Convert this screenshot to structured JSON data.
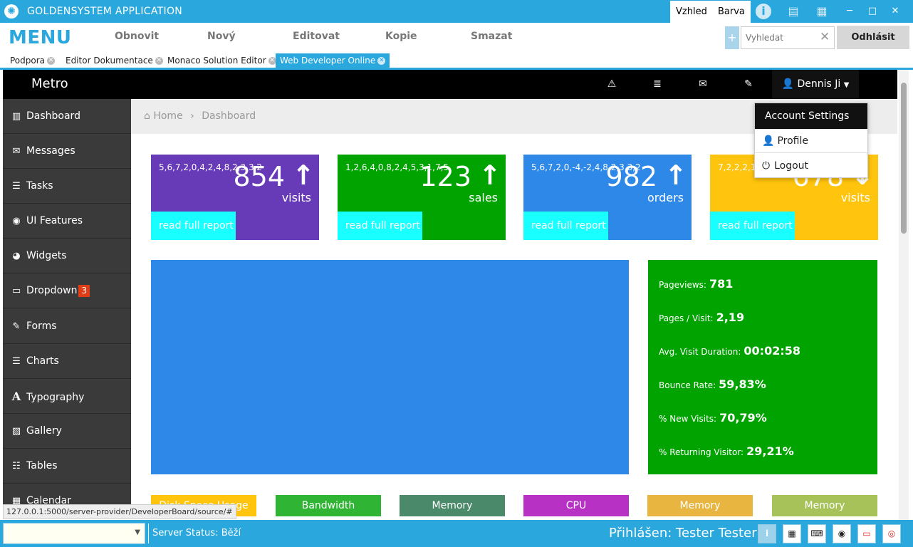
{
  "window": {
    "title": "GOLDENSYSTEM APPLICATION",
    "tabs": [
      "Vzhled",
      "Barva"
    ],
    "icons": [
      "info-icon",
      "book-icon",
      "layout-icon"
    ],
    "controls": [
      "minimize",
      "maximize",
      "close"
    ]
  },
  "menu": {
    "title": "MENU",
    "items": [
      "Obnovit",
      "Nový",
      "Editovat",
      "Kopie",
      "Smazat"
    ],
    "search_placeholder": "Vyhledat",
    "logout": "Odhlásit"
  },
  "doc_tabs": [
    {
      "label": "Podpora",
      "active": false
    },
    {
      "label": "Editor Dokumentace",
      "active": false
    },
    {
      "label": "Monaco Solution Editor",
      "active": false
    },
    {
      "label": "Web Developer Online",
      "active": true
    }
  ],
  "app": {
    "brand": "Metro",
    "user": "Dennis Ji",
    "nav_icons": [
      "warning-icon",
      "list-icon",
      "mail-icon",
      "wrench-icon"
    ],
    "dropdown": {
      "header": "Account Settings",
      "items": [
        "Profile",
        "Logout"
      ]
    },
    "sidebar": [
      {
        "label": "Dashboard",
        "icon": "chart-icon"
      },
      {
        "label": "Messages",
        "icon": "envelope-icon"
      },
      {
        "label": "Tasks",
        "icon": "tasks-icon"
      },
      {
        "label": "UI Features",
        "icon": "eye-icon"
      },
      {
        "label": "Widgets",
        "icon": "dashboard-icon"
      },
      {
        "label": "Dropdown",
        "icon": "folder-icon",
        "badge": "3"
      },
      {
        "label": "Forms",
        "icon": "edit-icon"
      },
      {
        "label": "Charts",
        "icon": "list-icon"
      },
      {
        "label": "Typography",
        "icon": "font-icon"
      },
      {
        "label": "Gallery",
        "icon": "picture-icon"
      },
      {
        "label": "Tables",
        "icon": "table-icon"
      },
      {
        "label": "Calendar",
        "icon": "calendar-icon"
      }
    ],
    "breadcrumb": [
      "Home",
      "Dashboard"
    ],
    "tiles": [
      {
        "spark": "5,6,7,2,0,4,2,4,8,2,3,3,2",
        "value": "854",
        "label": "visits",
        "report": "read full report",
        "color": "#673ab7"
      },
      {
        "spark": "1,2,6,4,0,8,2,4,5,3,1,7,5",
        "value": "123",
        "label": "sales",
        "report": "read full report",
        "color": "#00a300"
      },
      {
        "spark": "5,6,7,2,0,-4,-2,4,8,2,3,3,2",
        "value": "982",
        "label": "orders",
        "report": "read full report",
        "color": "#2e88e8"
      },
      {
        "spark": "7,2,2,2,1,-4,-2,4,8,,0,3,3,5",
        "value": "678",
        "label": "visits",
        "report": "read full report",
        "color": "#ffc40d"
      }
    ],
    "stats": [
      {
        "label": "Pageviews:",
        "value": "781"
      },
      {
        "label": "Pages / Visit:",
        "value": "2,19"
      },
      {
        "label": "Avg. Visit Duration:",
        "value": "00:02:58"
      },
      {
        "label": "Bounce Rate:",
        "value": "59,83%"
      },
      {
        "label": "% New Visits:",
        "value": "70,79%"
      },
      {
        "label": "% Returning Visitor:",
        "value": "29,21%"
      }
    ],
    "widgets": [
      {
        "label": "Disk Space Usage",
        "color": "#ffc40d"
      },
      {
        "label": "Bandwidth",
        "color": "#2fb533"
      },
      {
        "label": "Memory",
        "color": "#4a8a6a"
      },
      {
        "label": "CPU",
        "color": "#b732c4"
      },
      {
        "label": "Memory",
        "color": "#e8b640"
      },
      {
        "label": "Memory",
        "color": "#a8c25a"
      }
    ]
  },
  "status": {
    "url_hint": "127.0.0.1:5000/server-provider/DeveloperBoard/source/#",
    "server_label": "Server Status:",
    "server_value": "Běží",
    "logged_in": "Přihlášen: Tester Tester",
    "icons": [
      "info-icon",
      "calculator-icon",
      "keyboard-icon",
      "eye-icon",
      "monitor-icon",
      "lifebuoy-icon"
    ]
  }
}
